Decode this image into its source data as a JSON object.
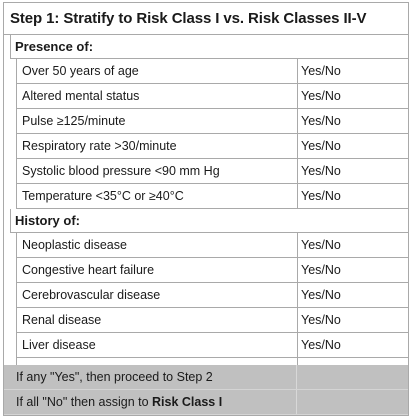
{
  "title": "Step 1: Stratify to Risk Class I vs. Risk Classes II-V",
  "sections": {
    "presence_label": "Presence of:",
    "history_label": "History of:"
  },
  "presence_items": [
    {
      "label": "Over 50 years of age",
      "answer": "Yes/No"
    },
    {
      "label": "Altered mental status",
      "answer": "Yes/No"
    },
    {
      "label": "Pulse ≥125/minute",
      "answer": "Yes/No"
    },
    {
      "label": "Respiratory rate >30/minute",
      "answer": "Yes/No"
    },
    {
      "label": "Systolic blood pressure <90 mm Hg",
      "answer": "Yes/No"
    },
    {
      "label": "Temperature <35°C or ≥40°C",
      "answer": "Yes/No"
    }
  ],
  "history_items": [
    {
      "label": "Neoplastic disease",
      "answer": "Yes/No"
    },
    {
      "label": "Congestive heart failure",
      "answer": "Yes/No"
    },
    {
      "label": "Cerebrovascular disease",
      "answer": "Yes/No"
    },
    {
      "label": "Renal disease",
      "answer": "Yes/No"
    },
    {
      "label": "Liver disease",
      "answer": "Yes/No"
    }
  ],
  "footer": {
    "line1": "If any \"Yes\", then proceed to Step 2",
    "line2_prefix": "If all \"No\" then assign to ",
    "line2_bold": "Risk Class I"
  }
}
